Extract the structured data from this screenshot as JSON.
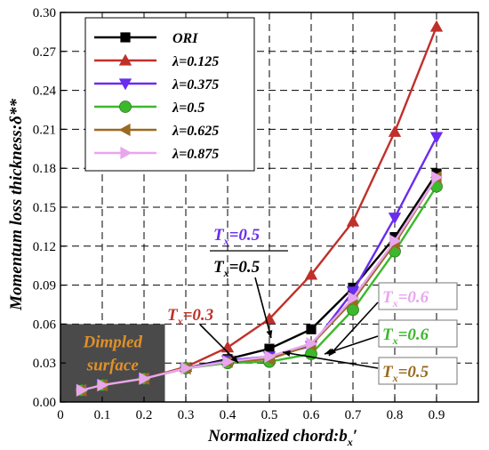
{
  "chart_data": {
    "type": "line",
    "xlabel": "Normalized chord:b",
    "xlabel_sub": "x",
    "xlabel_suffix": "′",
    "ylabel": "Momentum loss thickness:δ**",
    "xlim": [
      0,
      1.0
    ],
    "ylim": [
      0,
      0.3
    ],
    "x_ticks": [
      0,
      0.1,
      0.2,
      0.3,
      0.4,
      0.5,
      0.6,
      0.7,
      0.8,
      0.9
    ],
    "x_tick_labels": [
      "0",
      "0.1",
      "0.2",
      "0.3",
      "0.4",
      "0.5",
      "0.6",
      "0.7",
      "0.8",
      "0.9"
    ],
    "y_ticks": [
      0,
      0.03,
      0.06,
      0.09,
      0.12,
      0.15,
      0.18,
      0.21,
      0.24,
      0.27,
      0.3
    ],
    "y_tick_labels": [
      "0.00",
      "0.03",
      "0.06",
      "0.09",
      "0.12",
      "0.15",
      "0.18",
      "0.21",
      "0.24",
      "0.27",
      "0.30"
    ],
    "grid": true,
    "legend_position": "top-left",
    "x": [
      0.05,
      0.1,
      0.2,
      0.3,
      0.4,
      0.5,
      0.6,
      0.7,
      0.8,
      0.9
    ],
    "series": [
      {
        "name": "ORI",
        "color": "#000000",
        "marker": "square",
        "values": [
          0.009,
          0.013,
          0.018,
          0.026,
          0.033,
          0.041,
          0.056,
          0.088,
          0.127,
          0.176
        ]
      },
      {
        "name": "λ=0.125",
        "color": "#c0302a",
        "marker": "triangle-up",
        "values": [
          0.009,
          0.013,
          0.018,
          0.027,
          0.042,
          0.064,
          0.098,
          0.139,
          0.208,
          0.289
        ]
      },
      {
        "name": "λ=0.375",
        "color": "#6a2cf0",
        "marker": "triangle-down",
        "values": [
          0.009,
          0.013,
          0.018,
          0.026,
          0.032,
          0.035,
          0.043,
          0.085,
          0.142,
          0.204
        ]
      },
      {
        "name": "λ=0.5",
        "color": "#3cb82c",
        "marker": "circle",
        "values": [
          0.009,
          0.013,
          0.018,
          0.026,
          0.03,
          0.031,
          0.037,
          0.071,
          0.116,
          0.166
        ]
      },
      {
        "name": "λ=0.625",
        "color": "#9a6a22",
        "marker": "triangle-left",
        "values": [
          0.009,
          0.013,
          0.018,
          0.026,
          0.031,
          0.033,
          0.044,
          0.078,
          0.122,
          0.173
        ]
      },
      {
        "name": "λ=0.875",
        "color": "#e8a6ee",
        "marker": "triangle-right",
        "values": [
          0.009,
          0.013,
          0.018,
          0.026,
          0.031,
          0.035,
          0.045,
          0.08,
          0.124,
          0.173
        ]
      }
    ],
    "region": {
      "x_range": [
        0,
        0.25
      ],
      "y_range": [
        0,
        0.06
      ],
      "label_line1": "Dimpled",
      "label_line2": "surface",
      "fill": "#4a4a4a",
      "text_color": "#e0902a"
    },
    "annotations": [
      {
        "text": "T",
        "sub": "x",
        "value": "=0.3",
        "color": "#c0302a",
        "target": [
          0.3,
          0.027
        ]
      },
      {
        "text": "T",
        "sub": "x",
        "value": "=0.5",
        "color": "#6a2cf0",
        "target": [
          0.5,
          0.041
        ]
      },
      {
        "text": "T",
        "sub": "x",
        "value": "=0.5",
        "color": "#000000",
        "target": [
          0.5,
          0.041
        ]
      },
      {
        "text": "T",
        "sub": "x",
        "value": "=0.6",
        "color": "#e8a6ee",
        "target": [
          0.6,
          0.043
        ]
      },
      {
        "text": "T",
        "sub": "x",
        "value": "=0.6",
        "color": "#3cb82c",
        "target": [
          0.6,
          0.037
        ]
      },
      {
        "text": "T",
        "sub": "x",
        "value": "=0.5",
        "color": "#9a6a22",
        "target": [
          0.5,
          0.033
        ]
      }
    ]
  }
}
